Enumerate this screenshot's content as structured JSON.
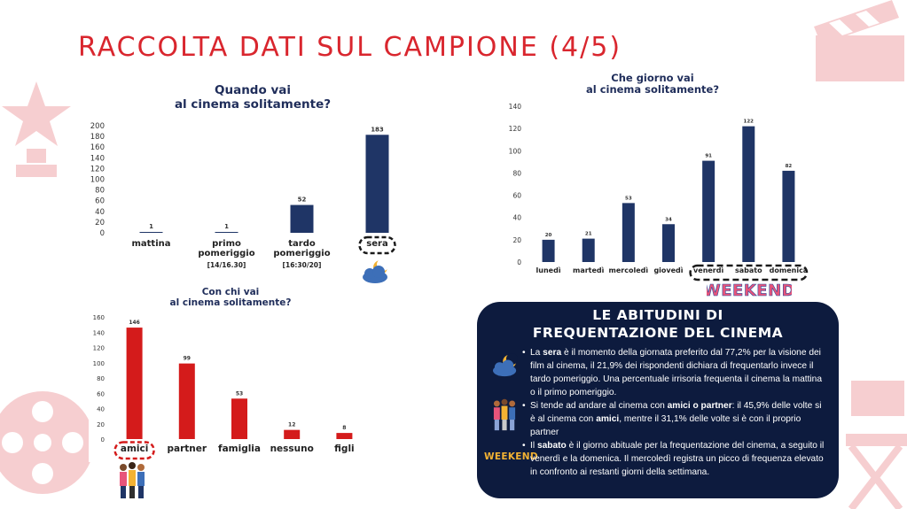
{
  "page": {
    "title": "RACCOLTA DATI SUL CAMPIONE (4/5)"
  },
  "colors": {
    "navy": "#1f3566",
    "red": "#d41b1b",
    "title_red": "#d9262e",
    "box_bg": "#0d1b3e"
  },
  "chart_data": [
    {
      "id": "when",
      "type": "bar",
      "title_lines": [
        "Quando vai",
        "al cinema solitamente?"
      ],
      "categories": [
        "mattina",
        "primo pomeriggio",
        "tardo pomeriggio",
        "sera"
      ],
      "category_lines": [
        [
          "mattina"
        ],
        [
          "primo",
          "pomeriggio"
        ],
        [
          "tardo",
          "pomeriggio"
        ],
        [
          "sera"
        ]
      ],
      "sub_labels": [
        "",
        "[14/16.30]",
        "[16:30/20]",
        ""
      ],
      "values": [
        1,
        1,
        52,
        183
      ],
      "ylim": [
        0,
        200
      ],
      "ticks": [
        0,
        20,
        40,
        60,
        80,
        100,
        120,
        140,
        160,
        180,
        200
      ],
      "color": "#1f3566",
      "highlight": "sera",
      "grid": false
    },
    {
      "id": "day",
      "type": "bar",
      "title_lines": [
        "Che giorno vai",
        "al cinema solitamente?"
      ],
      "categories": [
        "lunedì",
        "martedì",
        "mercoledì",
        "giovedì",
        "venerdì",
        "sabato",
        "domenica"
      ],
      "values": [
        20,
        21,
        53,
        34,
        91,
        122,
        82
      ],
      "ylim": [
        0,
        140
      ],
      "ticks": [
        0,
        20,
        40,
        60,
        80,
        100,
        120,
        140
      ],
      "color": "#1f3566",
      "highlight_group": [
        "venerdì",
        "sabato",
        "domenica"
      ],
      "grid": false
    },
    {
      "id": "who",
      "type": "bar",
      "title_lines": [
        "Con chi vai",
        "al cinema solitamente?"
      ],
      "categories": [
        "amici",
        "partner",
        "famiglia",
        "nessuno",
        "figli"
      ],
      "values": [
        146,
        99,
        53,
        12,
        8
      ],
      "ylim": [
        0,
        160
      ],
      "ticks": [
        0,
        20,
        40,
        60,
        80,
        100,
        120,
        140,
        160
      ],
      "color": "#d41b1b",
      "highlight": "amici",
      "grid": false
    }
  ],
  "weekend": {
    "label": "WEEKEND",
    "small_label": "WEEKEND"
  },
  "summary": {
    "title_line1": "LE ABITUDINI DI",
    "title_line2": "FREQUENTAZIONE DEL CINEMA",
    "bullet1": {
      "t1": "La ",
      "b1": "sera",
      "t2": " è il momento della giornata preferito dal 77,2% per la visione dei film al cinema, il 21,9% dei rispondenti dichiara di frequentarlo invece il tardo pomeriggio. Una percentuale irrisoria frequenta il cinema la mattina o il primo pomeriggio."
    },
    "bullet2": {
      "t1": "Si tende ad andare al cinema con ",
      "b1": "amici o partner",
      "t2": ": il 45,9% delle volte si è al cinema con ",
      "b2": "amici",
      "t3": ", mentre il 31,1% delle volte si è con il proprio partner"
    },
    "bullet3": {
      "t1": "Il ",
      "b1": "sabato",
      "t2": " è il giorno abituale per la frequentazione del cinema, a seguito il venerdì e la domenica. Il mercoledì registra un picco di frequenza elevato in confronto ai restanti giorni della settimana."
    }
  }
}
